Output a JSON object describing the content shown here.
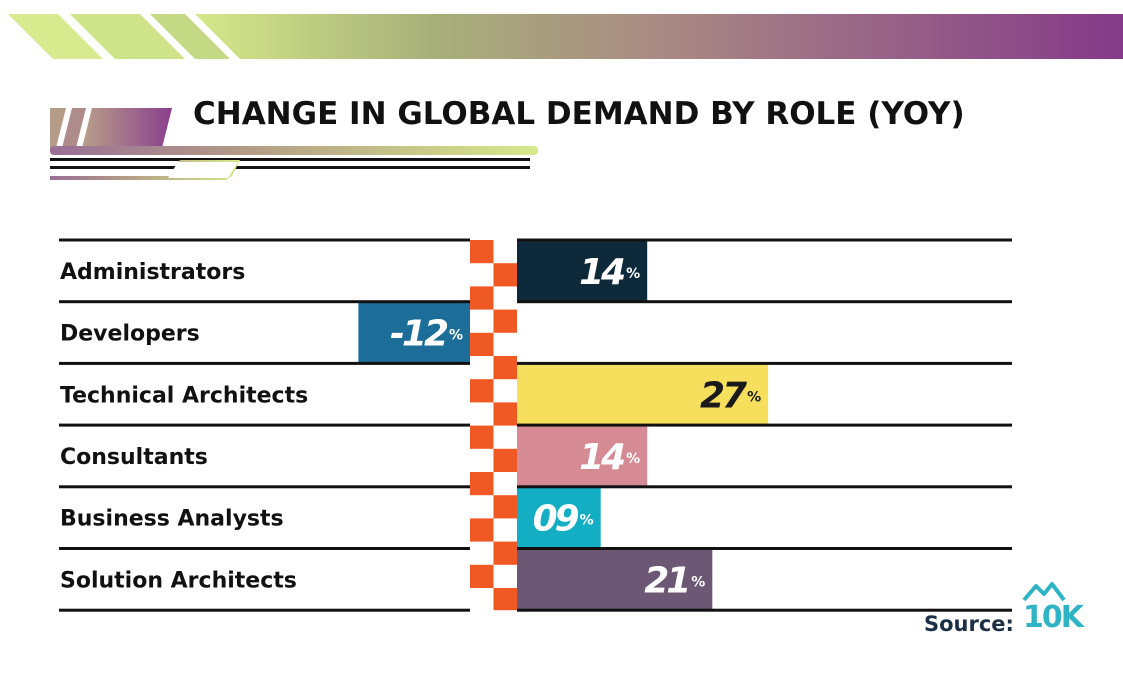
{
  "header": {
    "title": "CHANGE IN GLOBAL DEMAND BY ROLE (YOY)"
  },
  "colors": {
    "banner_start": "#d3e58a",
    "banner_end": "#843a88",
    "axis_check": "#ef5a24",
    "divider": "#111111"
  },
  "chart_data": {
    "type": "bar",
    "orientation": "horizontal",
    "title": "CHANGE IN GLOBAL DEMAND BY ROLE (YOY)",
    "unit": "%",
    "categories": [
      "Administrators",
      "Developers",
      "Technical Architects",
      "Consultants",
      "Business Analysts",
      "Solution Architects"
    ],
    "values": [
      14,
      -12,
      27,
      14,
      9,
      21
    ],
    "value_labels": [
      "14",
      "-12",
      "27",
      "14",
      "09",
      "21"
    ],
    "bar_colors": [
      "#0e2a3a",
      "#1c6e98",
      "#f5df5c",
      "#d68b94",
      "#14aec4",
      "#6c5874"
    ],
    "label_colors": [
      "#ffffff",
      "#ffffff",
      "#1a1a1a",
      "#ffffff",
      "#ffffff",
      "#ffffff"
    ]
  },
  "footer": {
    "source_label": "Source:",
    "logo_text": "10K",
    "logo_icon": "mountain-icon"
  }
}
